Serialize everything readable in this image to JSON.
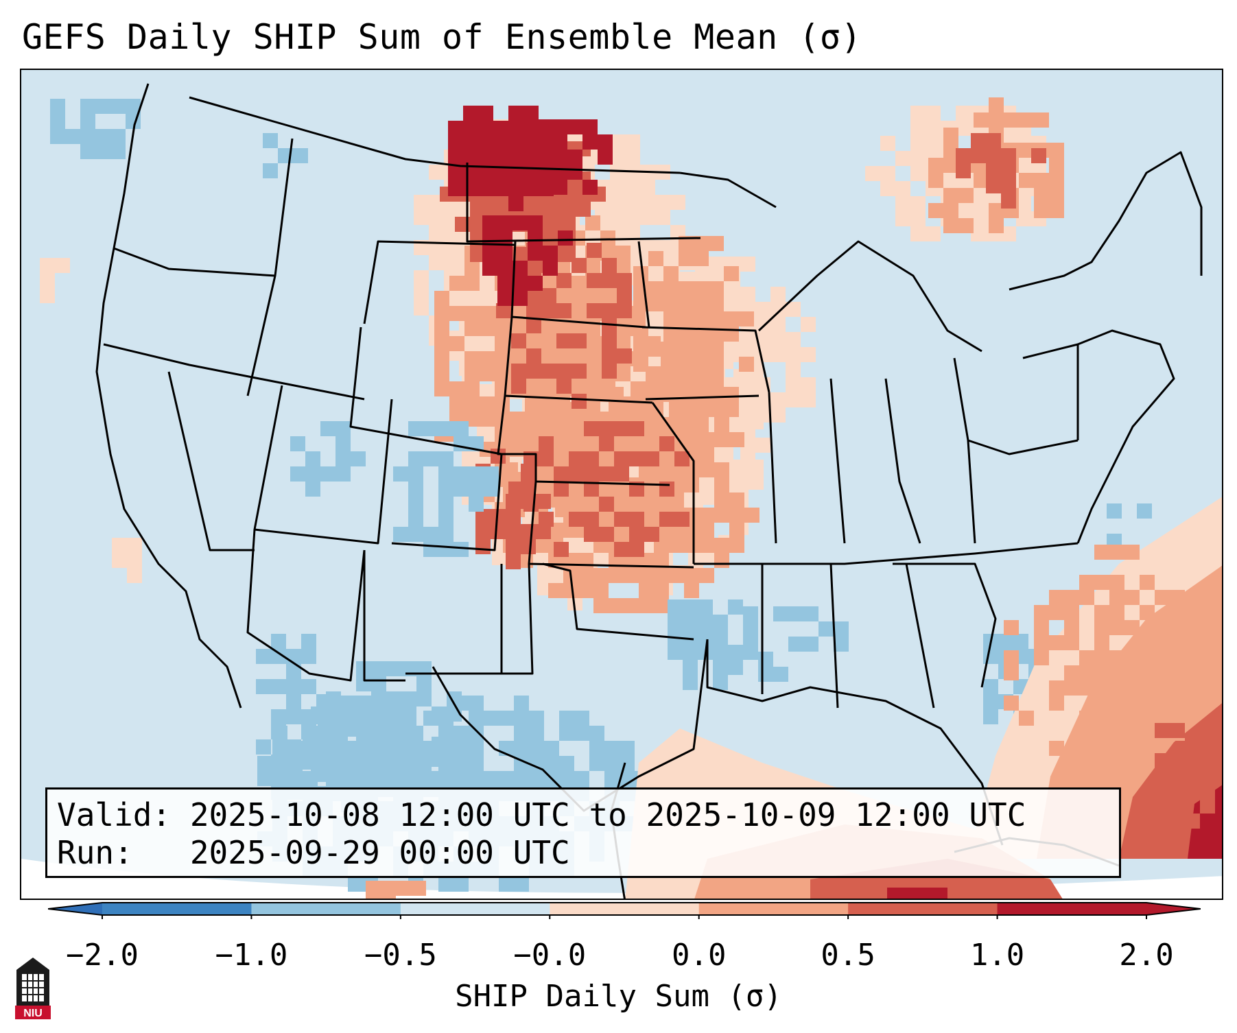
{
  "title": "GEFS Daily SHIP Sum of Ensemble Mean (σ)",
  "info": {
    "valid_line": "Valid: 2025-10-08 12:00 UTC to 2025-10-09 12:00 UTC",
    "run_line": "Run:   2025-09-29 00:00 UTC"
  },
  "colorbar": {
    "label": "SHIP Daily Sum (σ)",
    "ticks": [
      "−2.0",
      "−1.0",
      "−0.5",
      "−0.0",
      "0.0",
      "0.5",
      "1.0",
      "2.0"
    ],
    "colors": [
      "#3d84c2",
      "#94c5df",
      "#d2e5f0",
      "#fbdbc8",
      "#f2a584",
      "#d6604f",
      "#b3192b"
    ],
    "under_color": "#2f6fb8",
    "over_color": "#b3192b"
  },
  "map": {
    "projection": "Lambert conformal, CONUS",
    "background_color": "#d2e5f0"
  },
  "logo": {
    "text": "NIU",
    "color": "#c8102e",
    "icon": "university-tower-icon"
  }
}
